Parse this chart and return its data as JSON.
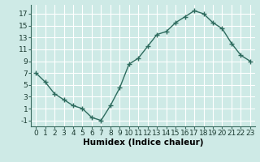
{
  "x": [
    0,
    1,
    2,
    3,
    4,
    5,
    6,
    7,
    8,
    9,
    10,
    11,
    12,
    13,
    14,
    15,
    16,
    17,
    18,
    19,
    20,
    21,
    22,
    23
  ],
  "y": [
    7,
    5.5,
    3.5,
    2.5,
    1.5,
    1.0,
    -0.5,
    -1.0,
    1.5,
    4.5,
    8.5,
    9.5,
    11.5,
    13.5,
    14.0,
    15.5,
    16.5,
    17.5,
    17.0,
    15.5,
    14.5,
    12.0,
    10.0,
    9.0
  ],
  "line_color": "#2e6b5e",
  "marker": "+",
  "marker_size": 4,
  "marker_linewidth": 1.0,
  "bg_color": "#ceeae6",
  "grid_color": "#ffffff",
  "grid_minor_color": "#e8f8f6",
  "xlabel": "Humidex (Indice chaleur)",
  "xlim": [
    -0.5,
    23.5
  ],
  "ylim": [
    -2,
    18.5
  ],
  "yticks": [
    -1,
    1,
    3,
    5,
    7,
    9,
    11,
    13,
    15,
    17
  ],
  "xticks": [
    0,
    1,
    2,
    3,
    4,
    5,
    6,
    7,
    8,
    9,
    10,
    11,
    12,
    13,
    14,
    15,
    16,
    17,
    18,
    19,
    20,
    21,
    22,
    23
  ],
  "xlabel_fontsize": 7.5,
  "tick_fontsize": 6.5,
  "linewidth": 1.0
}
